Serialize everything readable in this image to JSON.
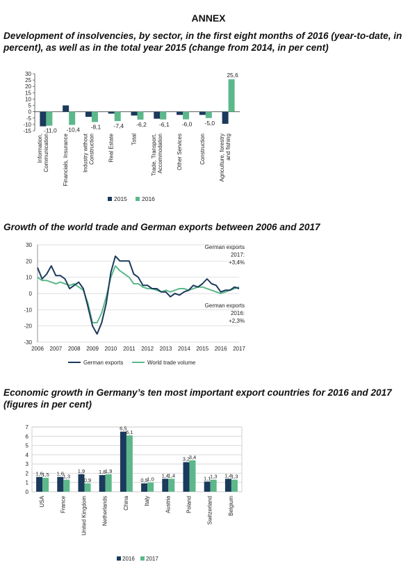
{
  "annex_title": "ANNEX",
  "headings": [
    "Development of insolvencies, by sector, in the first eight months of 2016 (year-to-date, in percent), as well as in the total year 2015 (change from 2014, in per cent)",
    "Growth of the world trade and German exports between 2006 and 2017",
    "Economic growth in Germany’s ten most important export countries for 2016 and 2017 (figures in per cent)"
  ],
  "chart_data": [
    {
      "type": "bar",
      "title": "Development of insolvencies, by sector, in the first eight months of 2016 (year-to-date, in percent), as well as in the total year 2015 (change from 2014, in per cent)",
      "categories": [
        "Information, Communication",
        "Financials, Insurance",
        "Industry without Construction",
        "Real Estate",
        "Total",
        "Trade, Transport, Accommodation",
        "Other Services",
        "Construction",
        "Agriculture, forestry and fishing"
      ],
      "category_lines": [
        [
          "Information,",
          "Communication"
        ],
        [
          "Financials, Insurance"
        ],
        [
          "Industry without",
          "Construction"
        ],
        [
          "Real Estate"
        ],
        [
          "Total"
        ],
        [
          "Trade, Transport,",
          "Accommodation"
        ],
        [
          "Other Services"
        ],
        [
          "Construction"
        ],
        [
          "Agriculture, forestry",
          "and fishing"
        ]
      ],
      "series": [
        {
          "name": "2015",
          "color": "#1b3a5c",
          "values": [
            -11.5,
            5.0,
            -4.0,
            -1.5,
            -3.0,
            -5.5,
            -2.5,
            -2.5,
            -9.5
          ]
        },
        {
          "name": "2016",
          "color": "#5cb88a",
          "values": [
            -11.0,
            -10.4,
            -8.1,
            -7.4,
            -6.2,
            -6.1,
            -6.0,
            -5.0,
            25.6
          ]
        }
      ],
      "labels": [
        "-11,0",
        "-10,4",
        "-8,1",
        "-7,4",
        "-6,2",
        "-6,1",
        "-6,0",
        "-5,0",
        "25,6"
      ],
      "ylim": [
        -15,
        30
      ],
      "yticks": [
        "30",
        "25",
        "20",
        "15",
        "10",
        "5",
        "0",
        "-5",
        "-10",
        "-15"
      ],
      "legend_position": "bottom"
    },
    {
      "type": "line",
      "title": "Growth of the world trade and German exports between 2006 and 2017",
      "xlim": [
        2006,
        2017
      ],
      "ylim": [
        -30,
        30
      ],
      "xticks": [
        "2006",
        "2007",
        "2008",
        "2009",
        "2010",
        "2011",
        "2012",
        "2013",
        "2014",
        "2015",
        "2016",
        "2017"
      ],
      "yticks": [
        "30",
        "20",
        "10",
        "0",
        "-10",
        "-20",
        "-30"
      ],
      "series": [
        {
          "name": "German exports",
          "color": "#1b3a5c",
          "x": [
            2006.0,
            2006.25,
            2006.5,
            2006.75,
            2007.0,
            2007.25,
            2007.5,
            2007.75,
            2008.0,
            2008.25,
            2008.5,
            2008.75,
            2009.0,
            2009.25,
            2009.5,
            2009.75,
            2010.0,
            2010.25,
            2010.5,
            2010.75,
            2011.0,
            2011.25,
            2011.5,
            2011.75,
            2012.0,
            2012.25,
            2012.5,
            2012.75,
            2013.0,
            2013.25,
            2013.5,
            2013.75,
            2014.0,
            2014.25,
            2014.5,
            2014.75,
            2015.0,
            2015.25,
            2015.5,
            2015.75,
            2016.0,
            2016.25,
            2016.5,
            2016.75,
            2017.0
          ],
          "y": [
            16,
            9,
            12,
            17,
            11,
            11,
            9,
            3,
            5,
            7,
            3,
            -8,
            -20,
            -25,
            -18,
            -6,
            13,
            23,
            20,
            20,
            20,
            12,
            10,
            5,
            5,
            3,
            3,
            1,
            1,
            -2,
            0,
            -1,
            1,
            2,
            5,
            4,
            6,
            9,
            6,
            5,
            1,
            2,
            2,
            4,
            3
          ]
        },
        {
          "name": "World trade volume",
          "color": "#5cb88a",
          "x": [
            2006.0,
            2006.25,
            2006.5,
            2006.75,
            2007.0,
            2007.25,
            2007.5,
            2007.75,
            2008.0,
            2008.25,
            2008.5,
            2008.75,
            2009.0,
            2009.25,
            2009.5,
            2009.75,
            2010.0,
            2010.25,
            2010.5,
            2010.75,
            2011.0,
            2011.25,
            2011.5,
            2011.75,
            2012.0,
            2012.25,
            2012.5,
            2012.75,
            2013.0,
            2013.25,
            2013.5,
            2013.75,
            2014.0,
            2014.25,
            2014.5,
            2014.75,
            2015.0,
            2015.25,
            2015.5,
            2015.75,
            2016.0,
            2016.25,
            2016.5,
            2016.75,
            2017.0
          ],
          "y": [
            10,
            8,
            8,
            7,
            6,
            7,
            6,
            5,
            6,
            4,
            2,
            -6,
            -18,
            -18,
            -12,
            -2,
            10,
            17,
            14,
            12,
            10,
            6,
            6,
            4,
            3,
            3,
            2,
            1,
            2,
            1,
            2,
            3,
            3,
            2,
            3,
            4,
            4,
            3,
            2,
            1,
            0,
            1,
            2,
            3,
            4
          ]
        }
      ],
      "annotations": [
        [
          "German exports",
          "2017:",
          "+3,4%"
        ],
        [
          "German exports",
          "2016:",
          "+2,3%"
        ]
      ],
      "legend_position": "bottom"
    },
    {
      "type": "bar",
      "title": "Economic growth in Germany’s ten most important export countries for 2016 and 2017 (figures in per cent)",
      "categories": [
        "USA",
        "France",
        "United Kingdom",
        "Netherlands",
        "China",
        "Italy",
        "Austria",
        "Poland",
        "Switzerland",
        "Belgium"
      ],
      "series": [
        {
          "name": "2016",
          "color": "#1b3a5c",
          "values": [
            1.6,
            1.6,
            1.9,
            1.8,
            6.5,
            0.9,
            1.4,
            3.2,
            1.1,
            1.4
          ]
        },
        {
          "name": "2017",
          "color": "#5cb88a",
          "values": [
            1.5,
            1.3,
            0.9,
            1.9,
            6.1,
            1.0,
            1.4,
            3.4,
            1.3,
            1.3
          ]
        }
      ],
      "labels_2016": [
        "1,6",
        "1,6",
        "1,9",
        "1,8",
        "6,5",
        "0,9",
        "1,4",
        "3,2",
        "1,1",
        "1,4"
      ],
      "labels_2017": [
        "1,5",
        "1,3",
        "0,9",
        "1,9",
        "6,1",
        "1,0",
        "1,4",
        "3,4",
        "1,3",
        "1,3"
      ],
      "ylim": [
        0,
        7
      ],
      "yticks": [
        "7",
        "6",
        "5",
        "4",
        "3",
        "2",
        "1",
        "0"
      ],
      "legend_position": "bottom"
    }
  ]
}
